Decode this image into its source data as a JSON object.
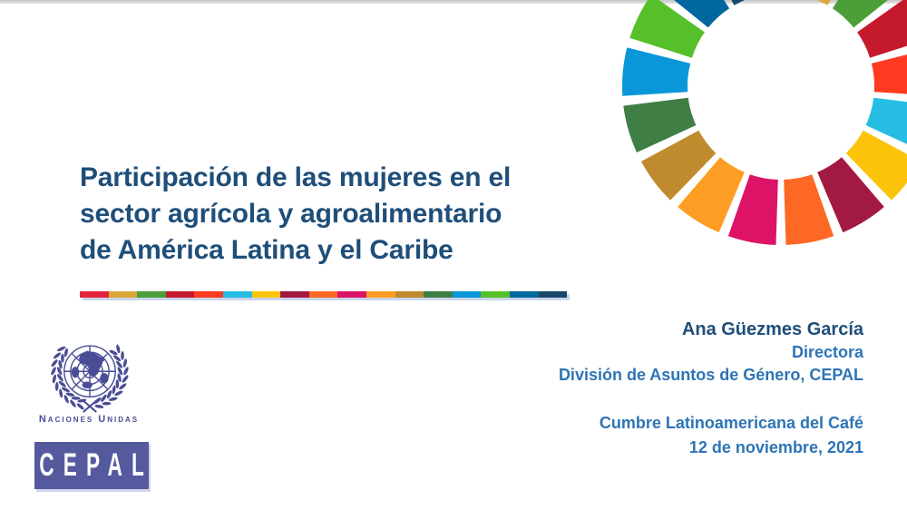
{
  "slide": {
    "title_lines": [
      "Participación de las mujeres en el",
      "sector agrícola y agroalimentario",
      "de América Latina y el Caribe"
    ]
  },
  "speaker": {
    "name": "Ana Güezmes García",
    "role": "Directora",
    "division": "División de Asuntos de Género, CEPAL",
    "event": "Cumbre Latinoamericana del Café",
    "date": "12 de noviembre, 2021"
  },
  "logos": {
    "un_caption": "Naciones Unidas",
    "cepal_label": "CEPAL"
  },
  "sdg": {
    "colors": [
      "#E5243B",
      "#DDA63A",
      "#4C9F38",
      "#C5192D",
      "#FF3A21",
      "#26BDE2",
      "#FCC30B",
      "#A21942",
      "#FD6925",
      "#DD1367",
      "#FD9D24",
      "#BF8B2E",
      "#3F7E44",
      "#0A97D9",
      "#56C02B",
      "#00689D",
      "#19486A"
    ]
  },
  "colors": {
    "title": "#1F4E79",
    "blue": "#2E74B5",
    "un": "#4A4D96",
    "cepal_bg": "#555A9E"
  }
}
